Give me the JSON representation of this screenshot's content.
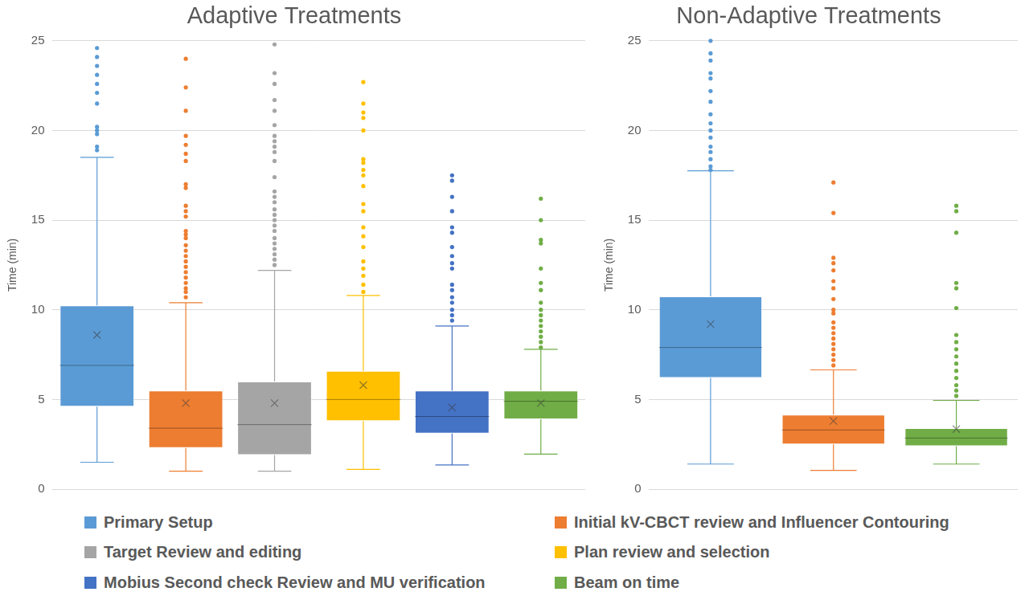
{
  "chart_data": [
    {
      "type": "boxplot",
      "title": "Adaptive Treatments",
      "y_label": "Time (min)",
      "ylim": [
        0,
        25
      ],
      "yticks": [
        0,
        5,
        10,
        15,
        20,
        25
      ],
      "grid": true,
      "legend": "bottom",
      "tick_labels": "y",
      "series": [
        {
          "name": "Primary Setup",
          "color": "#5b9bd5",
          "whisker_low": 1.5,
          "q1": 4.6,
          "median": 6.9,
          "q3": 10.25,
          "whisker_high": 18.5,
          "mean": 8.6,
          "outliers": [
            24.6,
            24.1,
            23.6,
            23.1,
            22.6,
            22.1,
            21.5,
            20.2,
            20.0,
            19.8,
            19.1,
            18.9
          ]
        },
        {
          "name": "Initial kV-CBCT review and Influencer Contouring",
          "color": "#ed7d31",
          "whisker_low": 1.0,
          "q1": 2.3,
          "median": 3.4,
          "q3": 5.5,
          "whisker_high": 10.4,
          "mean": 4.8,
          "outliers": [
            24.0,
            22.4,
            21.1,
            19.7,
            19.2,
            18.7,
            18.3,
            17.0,
            16.8,
            15.8,
            15.5,
            15.2,
            14.4,
            14.2,
            14.0,
            13.6,
            13.3,
            13.0,
            12.7,
            12.4,
            12.1,
            11.8,
            11.5,
            11.2,
            11.0,
            10.7
          ]
        },
        {
          "name": "Target Review and editing",
          "color": "#a5a5a5",
          "whisker_low": 1.0,
          "q1": 1.9,
          "median": 3.6,
          "q3": 6.0,
          "whisker_high": 12.2,
          "mean": 4.8,
          "outliers": [
            24.8,
            23.2,
            22.6,
            21.7,
            21.1,
            20.3,
            19.7,
            19.4,
            19.1,
            18.8,
            18.3,
            17.4,
            16.6,
            16.3,
            16.0,
            15.6,
            15.3,
            15.0,
            14.7,
            14.4,
            14.0,
            13.7,
            13.4,
            13.1,
            12.8,
            12.5
          ]
        },
        {
          "name": "Plan review and selection",
          "color": "#ffc000",
          "whisker_low": 1.1,
          "q1": 3.8,
          "median": 5.0,
          "q3": 6.6,
          "whisker_high": 10.8,
          "mean": 5.8,
          "outliers": [
            22.7,
            21.5,
            21.0,
            20.7,
            20.0,
            18.4,
            18.2,
            17.8,
            17.5,
            16.9,
            15.9,
            15.5,
            14.6,
            14.1,
            13.5,
            12.7,
            12.3,
            11.9,
            11.4,
            11.0
          ]
        },
        {
          "name": "Mobius Second check Review and MU verification",
          "color": "#4472c4",
          "whisker_low": 1.35,
          "q1": 3.1,
          "median": 4.05,
          "q3": 5.5,
          "whisker_high": 9.1,
          "mean": 4.55,
          "outliers": [
            17.5,
            17.2,
            16.3,
            15.5,
            14.6,
            14.3,
            13.5,
            13.0,
            12.6,
            12.3,
            11.4,
            11.1,
            10.7,
            10.4,
            10.0,
            9.7,
            9.4
          ]
        },
        {
          "name": "Beam on time",
          "color": "#70ad47",
          "whisker_low": 1.95,
          "q1": 3.9,
          "median": 4.9,
          "q3": 5.5,
          "whisker_high": 7.8,
          "mean": 4.8,
          "outliers": [
            16.2,
            15.0,
            13.9,
            13.7,
            12.3,
            11.5,
            11.1,
            10.4,
            10.0,
            9.7,
            9.4,
            9.1,
            8.8,
            8.5,
            8.2,
            7.9
          ]
        }
      ]
    },
    {
      "type": "boxplot",
      "title": "Non-Adaptive Treatments",
      "y_label": "Time (min)",
      "ylim": [
        0,
        25
      ],
      "yticks": [
        0,
        5,
        10,
        15,
        20,
        25
      ],
      "grid": true,
      "tick_labels": "y",
      "series": [
        {
          "name": "Primary Setup",
          "color": "#5b9bd5",
          "whisker_low": 1.4,
          "q1": 6.2,
          "median": 7.9,
          "q3": 10.75,
          "whisker_high": 17.75,
          "mean": 9.2,
          "outliers": [
            25.0,
            24.3,
            23.9,
            23.2,
            22.9,
            22.2,
            21.6,
            20.9,
            20.4,
            20.0,
            19.6,
            19.1,
            18.8,
            18.4,
            18.0,
            17.8
          ]
        },
        {
          "name": "Initial kV-CBCT review and Influencer Contouring",
          "color": "#ed7d31",
          "whisker_low": 1.05,
          "q1": 2.5,
          "median": 3.3,
          "q3": 4.15,
          "whisker_high": 6.65,
          "mean": 3.8,
          "outliers": [
            17.1,
            15.4,
            12.9,
            12.6,
            12.2,
            11.6,
            11.2,
            10.6,
            10.0,
            9.8,
            9.3,
            9.0,
            8.7,
            8.4,
            8.1,
            7.8,
            7.5,
            7.2,
            6.9
          ]
        },
        {
          "name": "Beam on time",
          "color": "#70ad47",
          "whisker_low": 1.4,
          "q1": 2.4,
          "median": 2.85,
          "q3": 3.4,
          "whisker_high": 4.95,
          "mean": 3.35,
          "outliers": [
            15.8,
            15.5,
            14.3,
            11.5,
            11.2,
            10.1,
            8.6,
            8.2,
            7.8,
            7.4,
            7.0,
            6.6,
            6.2,
            5.8,
            5.5,
            5.2
          ]
        }
      ]
    }
  ]
}
